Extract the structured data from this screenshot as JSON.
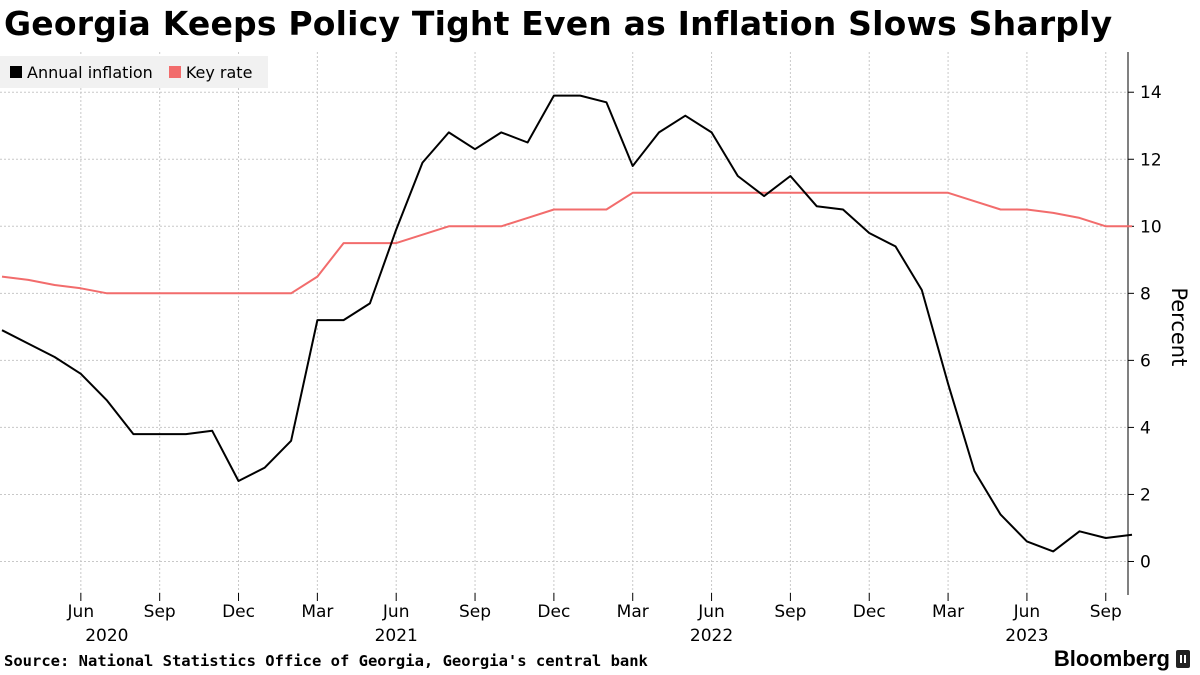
{
  "title": "Georgia Keeps Policy Tight Even as Inflation Slows Sharply",
  "source": "Source: National Statistics Office of Georgia, Georgia's central bank",
  "brand": "Bloomberg",
  "chart_data": {
    "type": "line",
    "title": "Georgia Keeps Policy Tight Even as Inflation Slows Sharply",
    "ylabel": "Percent",
    "xlabel": "",
    "ylim": [
      -1,
      15.2
    ],
    "yticks": [
      0,
      2,
      4,
      6,
      8,
      10,
      12,
      14
    ],
    "x_months": [
      "2020-03",
      "2020-04",
      "2020-05",
      "2020-06",
      "2020-07",
      "2020-08",
      "2020-09",
      "2020-10",
      "2020-11",
      "2020-12",
      "2021-01",
      "2021-02",
      "2021-03",
      "2021-04",
      "2021-05",
      "2021-06",
      "2021-07",
      "2021-08",
      "2021-09",
      "2021-10",
      "2021-11",
      "2021-12",
      "2022-01",
      "2022-02",
      "2022-03",
      "2022-04",
      "2022-05",
      "2022-06",
      "2022-07",
      "2022-08",
      "2022-09",
      "2022-10",
      "2022-11",
      "2022-12",
      "2023-01",
      "2023-02",
      "2023-03",
      "2023-04",
      "2023-05",
      "2023-06",
      "2023-07",
      "2023-08",
      "2023-09",
      "2023-10"
    ],
    "x_tick_labels": [
      {
        "month": "2020-06",
        "label": "Jun",
        "year": "2020"
      },
      {
        "month": "2020-09",
        "label": "Sep",
        "year": ""
      },
      {
        "month": "2020-12",
        "label": "Dec",
        "year": ""
      },
      {
        "month": "2021-03",
        "label": "Mar",
        "year": ""
      },
      {
        "month": "2021-06",
        "label": "Jun",
        "year": "2021"
      },
      {
        "month": "2021-09",
        "label": "Sep",
        "year": ""
      },
      {
        "month": "2021-12",
        "label": "Dec",
        "year": ""
      },
      {
        "month": "2022-03",
        "label": "Mar",
        "year": ""
      },
      {
        "month": "2022-06",
        "label": "Jun",
        "year": "2022"
      },
      {
        "month": "2022-09",
        "label": "Sep",
        "year": ""
      },
      {
        "month": "2022-12",
        "label": "Dec",
        "year": ""
      },
      {
        "month": "2023-03",
        "label": "Mar",
        "year": ""
      },
      {
        "month": "2023-06",
        "label": "Jun",
        "year": "2023"
      },
      {
        "month": "2023-09",
        "label": "Sep",
        "year": ""
      }
    ],
    "series": [
      {
        "name": "Annual inflation",
        "color": "#000000",
        "values": [
          6.9,
          6.5,
          6.1,
          5.6,
          4.8,
          3.8,
          3.8,
          3.8,
          3.9,
          2.4,
          2.8,
          3.6,
          7.2,
          7.2,
          7.7,
          9.9,
          11.9,
          12.8,
          12.3,
          12.8,
          12.5,
          13.9,
          13.9,
          13.7,
          11.8,
          12.8,
          13.3,
          12.8,
          11.5,
          10.9,
          11.5,
          10.6,
          10.5,
          9.8,
          9.4,
          8.1,
          5.3,
          2.7,
          1.4,
          0.6,
          0.3,
          0.9,
          0.7,
          0.8
        ]
      },
      {
        "name": "Key rate",
        "color": "#f26c6c",
        "values": [
          8.5,
          8.4,
          8.25,
          8.15,
          8.0,
          8.0,
          8.0,
          8.0,
          8.0,
          8.0,
          8.0,
          8.0,
          8.5,
          9.5,
          9.5,
          9.5,
          9.75,
          10.0,
          10.0,
          10.0,
          10.25,
          10.5,
          10.5,
          10.5,
          11.0,
          11.0,
          11.0,
          11.0,
          11.0,
          11.0,
          11.0,
          11.0,
          11.0,
          11.0,
          11.0,
          11.0,
          11.0,
          10.75,
          10.5,
          10.5,
          10.4,
          10.25,
          10.0,
          10.0
        ]
      }
    ],
    "grid": true,
    "legend_position": "top-left"
  }
}
